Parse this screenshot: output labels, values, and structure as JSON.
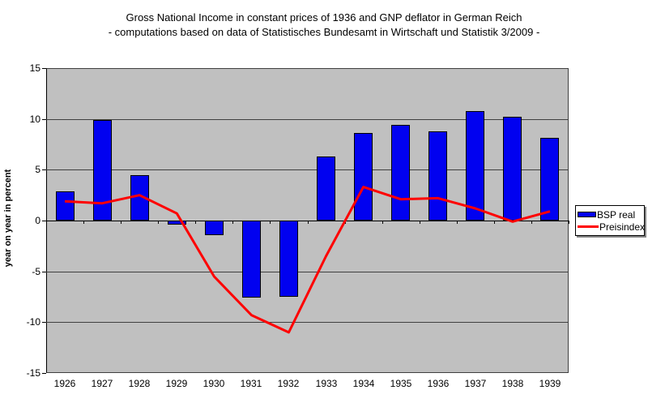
{
  "title": {
    "line1": "Gross National Income in constant prices of 1936 and GNP deflator in German Reich",
    "line2": "- computations based on data of Statistisches Bundesamt in Wirtschaft und Statistik 3/2009 -"
  },
  "chart_data": {
    "type": "bar+line",
    "title": "Gross National Income in constant prices of 1936 and GNP deflator in German Reich - computations based on data of Statistisches Bundesamt in Wirtschaft und Statistik 3/2009 -",
    "ylabel": "year on year in percent",
    "xlabel": "",
    "categories": [
      "1926",
      "1927",
      "1928",
      "1929",
      "1930",
      "1931",
      "1932",
      "1933",
      "1934",
      "1935",
      "1936",
      "1937",
      "1938",
      "1939"
    ],
    "series": [
      {
        "name": "BSP real",
        "type": "bar",
        "color": "#0101f0",
        "values": [
          2.9,
          9.9,
          4.5,
          -0.4,
          -1.4,
          -7.6,
          -7.5,
          6.3,
          8.6,
          9.4,
          8.8,
          10.8,
          10.2,
          8.1
        ]
      },
      {
        "name": "Preisindex",
        "type": "line",
        "color": "#ff0000",
        "values": [
          1.9,
          1.7,
          2.5,
          0.7,
          -5.5,
          -9.3,
          -11.0,
          -3.5,
          3.3,
          2.1,
          2.2,
          1.2,
          -0.1,
          0.9
        ]
      }
    ],
    "ylim": [
      -15,
      15
    ],
    "yticks": [
      15,
      10,
      5,
      0,
      -5,
      -10,
      -15
    ],
    "grid": true,
    "legend_position": "right",
    "plot_background": "#c0c0c0"
  },
  "legend": {
    "entries": [
      {
        "label": "BSP real",
        "swatch": "bar",
        "color": "#0101f0"
      },
      {
        "label": "Preisindex",
        "swatch": "line",
        "color": "#ff0000"
      }
    ]
  },
  "colors": {
    "bar": "#0101f0",
    "line": "#ff0000",
    "plot_bg": "#c0c0c0",
    "grid": "#404040"
  }
}
